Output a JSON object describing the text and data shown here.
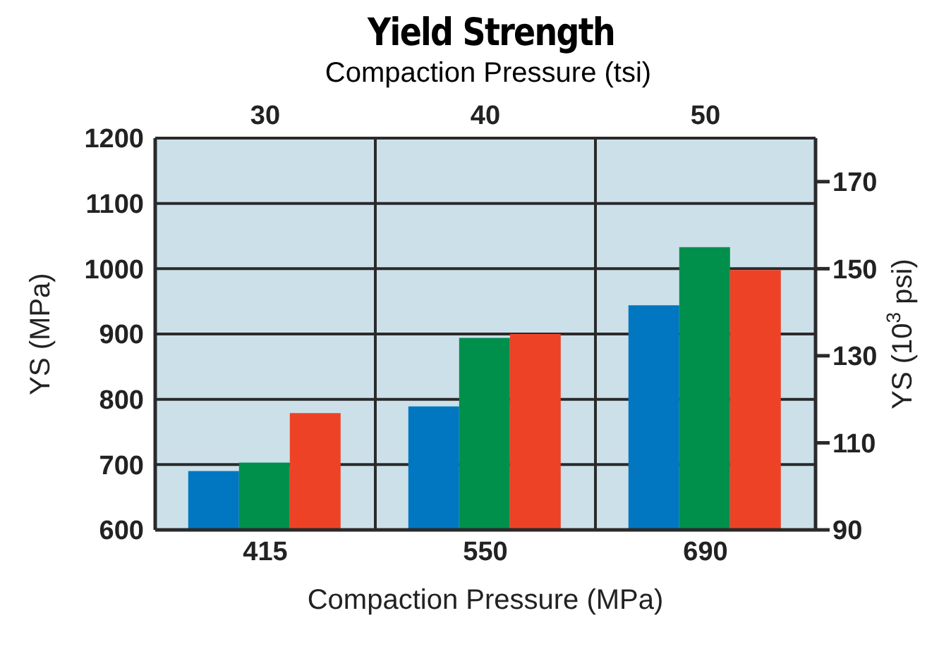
{
  "chart_data": {
    "type": "bar",
    "title": "Yield Strength",
    "xlabel": "Compaction Pressure (MPa)",
    "x2label": "Compaction Pressure (tsi)",
    "ylabel": "YS (MPa)",
    "y2label": "YS (10$^{3}$ psi)",
    "categories": [
      "415",
      "550",
      "690"
    ],
    "series": [
      {
        "color": "#0077c0",
        "values": [
          690,
          789,
          944
        ]
      },
      {
        "color": "#00904c",
        "values": [
          703,
          894,
          1033
        ]
      },
      {
        "color": "#ee4226",
        "values": [
          779,
          900,
          998
        ]
      }
    ],
    "ylim": [
      600,
      1200
    ],
    "yticks": [
      600,
      700,
      800,
      900,
      1000,
      1100,
      1200
    ],
    "y2lim": [
      90,
      180
    ],
    "y2ticks": [
      90,
      110,
      130,
      150,
      170
    ],
    "x2lim": [
      25,
      55
    ],
    "x2ticks": [
      30,
      40,
      50
    ],
    "grid": true,
    "legend": false
  }
}
